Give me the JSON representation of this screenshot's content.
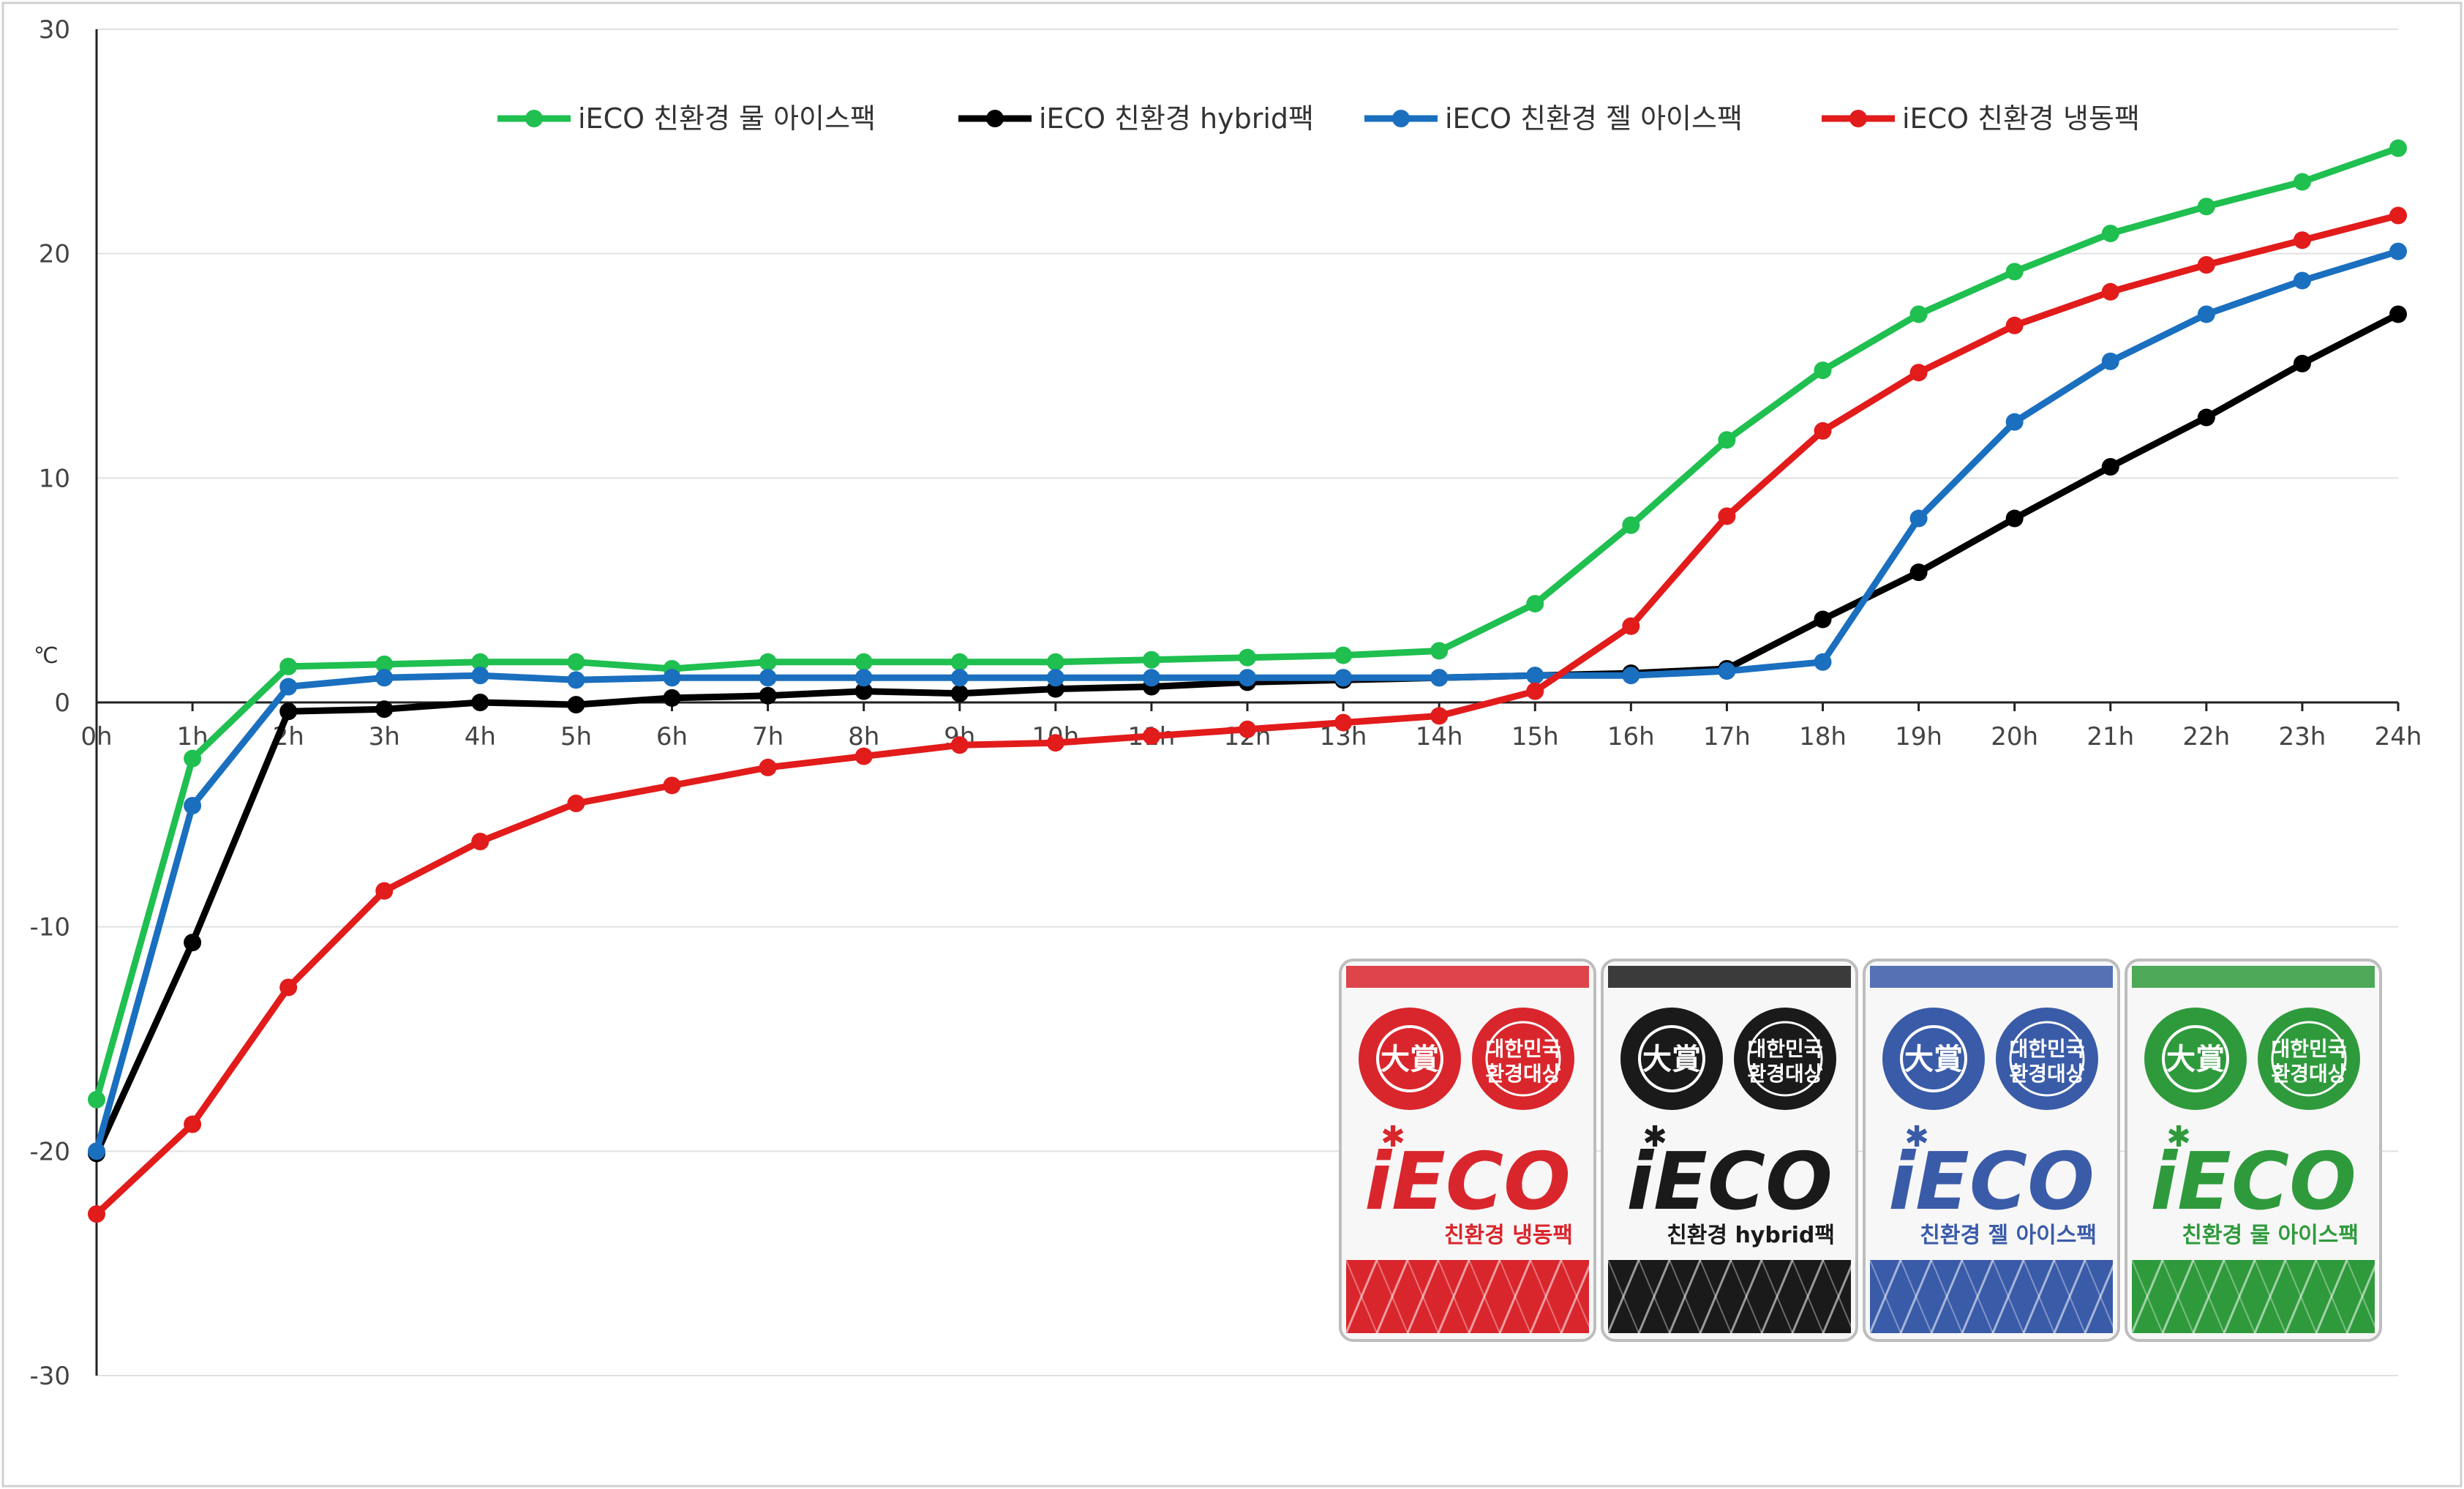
{
  "chart_data": {
    "type": "line",
    "unit": "℃",
    "x": [
      "0h",
      "1h",
      "2h",
      "3h",
      "4h",
      "5h",
      "6h",
      "7h",
      "8h",
      "9h",
      "10h",
      "11h",
      "12h",
      "13h",
      "14h",
      "15h",
      "16h",
      "17h",
      "18h",
      "19h",
      "20h",
      "21h",
      "22h",
      "23h",
      "24h"
    ],
    "x_tick_labels": [
      "0h",
      "1h",
      "2h",
      "3h",
      "4h",
      "5h",
      "6h",
      "7h",
      "8h",
      "9h",
      "10h",
      "11h",
      "12h",
      "13h",
      "14h",
      "15h",
      "16h",
      "17h",
      "18h",
      "19h",
      "20h",
      "21h",
      "22h",
      "23h",
      "24h"
    ],
    "ylim": [
      -30,
      30
    ],
    "y_ticks": [
      -30,
      -20,
      -10,
      0,
      10,
      20,
      30
    ],
    "grid": "horizontal",
    "legend_position": "top",
    "series": [
      {
        "name": "iECO 친환경 물 아이스팩",
        "color": "#1fbf50",
        "values": [
          -17.7,
          -2.5,
          1.6,
          1.7,
          1.8,
          1.8,
          1.5,
          1.8,
          1.8,
          1.8,
          1.8,
          1.9,
          2.0,
          2.1,
          2.3,
          4.4,
          7.9,
          11.7,
          14.8,
          17.3,
          19.2,
          20.9,
          22.1,
          23.2,
          24.7
        ]
      },
      {
        "name": "iECO 친환경 hybrid팩",
        "color": "#000000",
        "values": [
          -20.1,
          -10.7,
          -0.4,
          -0.3,
          0.0,
          -0.1,
          0.2,
          0.3,
          0.5,
          0.4,
          0.6,
          0.7,
          0.9,
          1.0,
          1.1,
          1.2,
          1.3,
          1.5,
          3.7,
          5.8,
          8.2,
          10.5,
          12.7,
          15.1,
          17.3
        ]
      },
      {
        "name": "iECO 친환경 젤 아이스팩",
        "color": "#1a6fbf",
        "values": [
          -20.0,
          -4.6,
          0.7,
          1.1,
          1.2,
          1.0,
          1.1,
          1.1,
          1.1,
          1.1,
          1.1,
          1.1,
          1.1,
          1.1,
          1.1,
          1.2,
          1.2,
          1.4,
          1.8,
          8.2,
          12.5,
          15.2,
          17.3,
          18.8,
          20.1
        ]
      },
      {
        "name": "iECO 친환경 냉동팩",
        "color": "#e21b1b",
        "values": [
          -22.8,
          -18.8,
          -12.7,
          -8.4,
          -6.2,
          -4.5,
          -3.7,
          -2.9,
          -2.4,
          -1.9,
          -1.8,
          -1.5,
          -1.2,
          -0.9,
          -0.6,
          0.5,
          3.4,
          8.3,
          12.1,
          14.7,
          16.8,
          18.3,
          19.5,
          20.6,
          21.7
        ]
      }
    ]
  },
  "product_packs": [
    {
      "color": "#d9262c",
      "seal_left": "大賞",
      "seal_right": "대한민국 환경대상",
      "brand": "iECO",
      "name": "친환경 냉동팩"
    },
    {
      "color": "#1a1a1a",
      "seal_left": "大賞",
      "seal_right": "대한민국 환경대상",
      "brand": "iECO",
      "name": "친환경 hybrid팩"
    },
    {
      "color": "#3a5ba8",
      "seal_left": "大賞",
      "seal_right": "대한민국 환경대상",
      "brand": "iECO",
      "name": "친환경 젤 아이스팩"
    },
    {
      "color": "#2f9a3c",
      "seal_left": "大賞",
      "seal_right": "대한민국 환경대상",
      "brand": "iECO",
      "name": "친환경 물 아이스팩"
    }
  ]
}
